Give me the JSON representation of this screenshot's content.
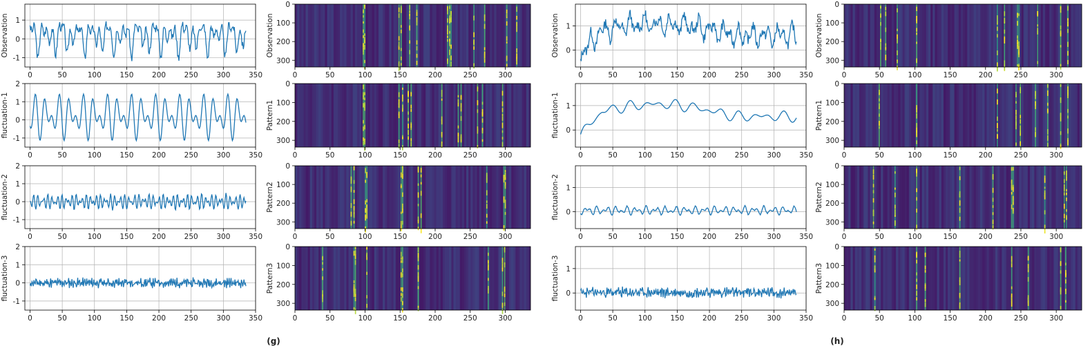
{
  "colors": {
    "line": "#1f77b4",
    "grid": "#b0b0b0",
    "frame": "#000000"
  },
  "chart_data": [
    {
      "panel_label": "(g)",
      "line_x_ticks": [
        "0",
        "50",
        "100",
        "150",
        "200",
        "250",
        "300",
        "350"
      ],
      "heat_x_ticks": [
        "0",
        "50",
        "100",
        "150",
        "200",
        "250",
        "300"
      ],
      "heat_y_ticks": [
        "0",
        "100",
        "200",
        "300"
      ],
      "rows": [
        {
          "line": {
            "type": "line",
            "ylabel": "Observation",
            "ylim": [
              -1.5,
              1.85
            ],
            "yticks": [
              "1",
              "0",
              "-1"
            ],
            "xlim": [
              -8,
              350
            ],
            "n": 336,
            "trend": "flat",
            "level": 0.15,
            "amp": 0.75,
            "freqs": [
              14,
              23,
              37
            ],
            "noise": 0.22,
            "seed": 3
          },
          "heat": {
            "type": "heatmap",
            "ylabel": "Observation",
            "columns": 330,
            "bright_columns": [
              95,
              97,
              145,
              148,
              160,
              170,
              213,
              216,
              218,
              250,
              265,
              296,
              310
            ]
          }
        },
        {
          "line": {
            "type": "line",
            "ylabel": "fluctuation-1",
            "ylim": [
              -1.5,
              2.0
            ],
            "yticks": [
              "2",
              "1",
              "0",
              "-1"
            ],
            "xlim": [
              -8,
              350
            ],
            "n": 336,
            "trend": "flat",
            "level": 0.2,
            "amp": 0.85,
            "freqs": [
              18,
              27
            ],
            "noise": 0.0,
            "seed": 5
          },
          "heat": {
            "type": "heatmap",
            "ylabel": "Pattern1",
            "columns": 330,
            "bright_columns": [
              95,
              97,
              145,
              150,
              158,
              162,
              205,
              228,
              232,
              255,
              262,
              290
            ]
          }
        },
        {
          "line": {
            "type": "line",
            "ylabel": "fluctuation-2",
            "ylim": [
              -1.5,
              2.0
            ],
            "yticks": [
              "2",
              "1",
              "0",
              "-1"
            ],
            "xlim": [
              -8,
              350
            ],
            "n": 336,
            "trend": "flat",
            "level": 0.0,
            "amp": 0.28,
            "freqs": [
              45,
              62
            ],
            "noise": 0.05,
            "seed": 7
          },
          "heat": {
            "type": "heatmap",
            "ylabel": "Pattern2",
            "columns": 330,
            "bright_columns": [
              78,
              82,
              98,
              100,
              148,
              150,
              172,
              176,
              268,
              292,
              294
            ]
          }
        },
        {
          "line": {
            "type": "line",
            "ylabel": "fluctuation-3",
            "ylim": [
              -1.5,
              2.0
            ],
            "yticks": [
              "2",
              "1",
              "0",
              "-1"
            ],
            "xlim": [
              -8,
              350
            ],
            "n": 336,
            "trend": "flat",
            "level": 0.0,
            "amp": 0.08,
            "freqs": [
              120
            ],
            "noise": 0.18,
            "seed": 11
          },
          "heat": {
            "type": "heatmap",
            "ylabel": "Pattern3",
            "columns": 330,
            "bright_columns": [
              38,
              82,
              84,
              100,
              148,
              150,
              172,
              270,
              290,
              293
            ]
          }
        }
      ]
    },
    {
      "panel_label": "(h)",
      "line_x_ticks": [
        "0",
        "50",
        "100",
        "150",
        "200",
        "250",
        "300",
        "350"
      ],
      "heat_x_ticks": [
        "0",
        "50",
        "100",
        "150",
        "200",
        "250",
        "300"
      ],
      "heat_y_ticks": [
        "0",
        "100",
        "200",
        "300"
      ],
      "rows": [
        {
          "line": {
            "type": "line",
            "ylabel": "Observation",
            "ylim": [
              -0.7,
              1.9
            ],
            "yticks": [
              "1",
              "0"
            ],
            "xlim": [
              -8,
              350
            ],
            "n": 336,
            "trend": "hump",
            "level": 0.6,
            "amp": 0.3,
            "freqs": [
              16,
              28
            ],
            "noise": 0.2,
            "seed": 13
          },
          "heat": {
            "type": "heatmap",
            "ylabel": "Observation",
            "columns": 330,
            "bright_columns": [
              50,
              57,
              73,
              100,
              212,
              222,
              240,
              242,
              268,
              300,
              310
            ]
          }
        },
        {
          "line": {
            "type": "line",
            "ylabel": "fluctuation-1",
            "ylim": [
              -0.7,
              1.9
            ],
            "yticks": [
              "1",
              "0"
            ],
            "xlim": [
              -8,
              350
            ],
            "n": 336,
            "trend": "hump",
            "level": 0.55,
            "amp": 0.15,
            "freqs": [
              10,
              14
            ],
            "noise": 0.0,
            "seed": 17
          },
          "heat": {
            "type": "heatmap",
            "ylabel": "Pattern1",
            "columns": 330,
            "bright_columns": [
              48,
              100,
              212,
              238,
              244,
              265,
              282,
              300,
              310
            ]
          }
        },
        {
          "line": {
            "type": "line",
            "ylabel": "fluctuation-2",
            "ylim": [
              -0.7,
              1.9
            ],
            "yticks": [
              "1",
              "0"
            ],
            "xlim": [
              -8,
              350
            ],
            "n": 336,
            "trend": "flat",
            "level": 0.05,
            "amp": 0.12,
            "freqs": [
              22,
              35
            ],
            "noise": 0.02,
            "seed": 19
          },
          "heat": {
            "type": "heatmap",
            "ylabel": "Pattern2",
            "columns": 330,
            "bright_columns": [
              40,
              70,
              100,
              160,
              206,
              232,
              234,
              278,
              305,
              308
            ]
          }
        },
        {
          "line": {
            "type": "line",
            "ylabel": "fluctuation-3",
            "ylim": [
              -0.7,
              1.9
            ],
            "yticks": [
              "1",
              "0"
            ],
            "xlim": [
              -8,
              350
            ],
            "n": 336,
            "trend": "flat",
            "level": 0.02,
            "amp": 0.05,
            "freqs": [
              110
            ],
            "noise": 0.17,
            "seed": 23
          },
          "heat": {
            "type": "heatmap",
            "ylabel": "Pattern3",
            "columns": 330,
            "bright_columns": [
              42,
              100,
              112,
              160,
              232,
              255,
              300,
              307
            ]
          }
        }
      ]
    }
  ]
}
